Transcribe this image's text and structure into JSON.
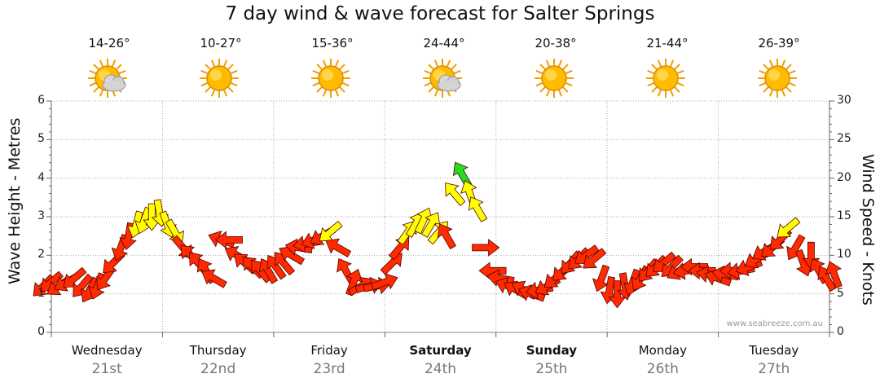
{
  "title": "7 day wind & wave forecast for Salter Springs",
  "watermark": "www.seabreeze.com.au",
  "days": [
    {
      "name": "Wednesday",
      "date": "21st",
      "temp": "14-26°",
      "icon": "sun-cloud-icon",
      "weekend": false
    },
    {
      "name": "Thursday",
      "date": "22nd",
      "temp": "10-27°",
      "icon": "sun-icon",
      "weekend": false
    },
    {
      "name": "Friday",
      "date": "23rd",
      "temp": "15-36°",
      "icon": "sun-icon",
      "weekend": false
    },
    {
      "name": "Saturday",
      "date": "24th",
      "temp": "24-44°",
      "icon": "sun-cloud-icon",
      "weekend": true
    },
    {
      "name": "Sunday",
      "date": "25th",
      "temp": "20-38°",
      "icon": "sun-icon",
      "weekend": true
    },
    {
      "name": "Monday",
      "date": "26th",
      "temp": "21-44°",
      "icon": "sun-icon",
      "weekend": false
    },
    {
      "name": "Tuesday",
      "date": "27th",
      "temp": "26-39°",
      "icon": "sun-icon",
      "weekend": false
    }
  ],
  "chart_data": {
    "type": "line",
    "title": "7 day wind & wave forecast for Salter Springs",
    "ylabel": "Wave Height - Metres",
    "y2label": "Wind Speed - Knots",
    "ylim": [
      0,
      6
    ],
    "y2lim": [
      0,
      30
    ],
    "yticks": [
      0,
      1,
      2,
      3,
      4,
      5,
      6
    ],
    "y2ticks": [
      0,
      5,
      10,
      15,
      20,
      25,
      30
    ],
    "categories": [
      "Wednesday",
      "Thursday",
      "Friday",
      "Saturday",
      "Sunday",
      "Monday",
      "Tuesday"
    ],
    "grid": true,
    "colors": {
      "light": "#ff2a00",
      "moderate": "#ffff00",
      "strong": "#22dd22",
      "outline": "#550000"
    },
    "wind_knots": [
      [
        6,
        6.5,
        6,
        6.5,
        7,
        6,
        5.5,
        6,
        7,
        9,
        11,
        12.5,
        14,
        14.5,
        15,
        15.5,
        14,
        13,
        11
      ],
      [
        10,
        9,
        8,
        7,
        12,
        12,
        10,
        9,
        8.5,
        8,
        8,
        8.5,
        9,
        10,
        11,
        11.5,
        12,
        12.5,
        13
      ],
      [
        11,
        8,
        6.5,
        6,
        6,
        6,
        6.5,
        9,
        11,
        13,
        14,
        14.5,
        14,
        13,
        12.5,
        18,
        20.5,
        18,
        16
      ],
      [
        11,
        8,
        7,
        6,
        5.5,
        5.5,
        5,
        5.5,
        6,
        7,
        8,
        9,
        9.5,
        10,
        9.5,
        7,
        5.5,
        5,
        6
      ],
      [
        6.5,
        7,
        8,
        8.5,
        9,
        8.5,
        8,
        8,
        8.5,
        8,
        7.5,
        7,
        7.5,
        8,
        8,
        8.5,
        9.5,
        10.5,
        11
      ],
      [
        12,
        13.5,
        11,
        9,
        10,
        8,
        7,
        7.5
      ]
    ],
    "wind_directions_deg": [
      [
        225,
        230,
        235,
        240,
        230,
        220,
        210,
        200,
        215,
        225,
        200,
        190,
        195,
        200,
        180,
        170,
        160,
        150,
        140
      ],
      [
        315,
        320,
        330,
        300,
        290,
        270,
        300,
        310,
        315,
        320,
        330,
        325,
        320,
        300,
        280,
        260,
        250,
        240,
        230
      ],
      [
        300,
        330,
        20,
        60,
        75,
        80,
        70,
        45,
        40,
        35,
        30,
        25,
        30,
        40,
        330,
        320,
        330,
        340,
        330
      ],
      [
        90,
        270,
        280,
        290,
        300,
        300,
        290,
        260,
        240,
        230,
        225,
        220,
        225,
        235,
        230,
        200,
        190,
        180,
        170
      ],
      [
        200,
        210,
        220,
        225,
        230,
        225,
        240,
        260,
        270,
        270,
        280,
        290,
        280,
        270,
        260,
        250,
        240,
        240,
        230
      ],
      [
        225,
        230,
        210,
        160,
        180,
        330,
        330,
        340
      ]
    ]
  }
}
